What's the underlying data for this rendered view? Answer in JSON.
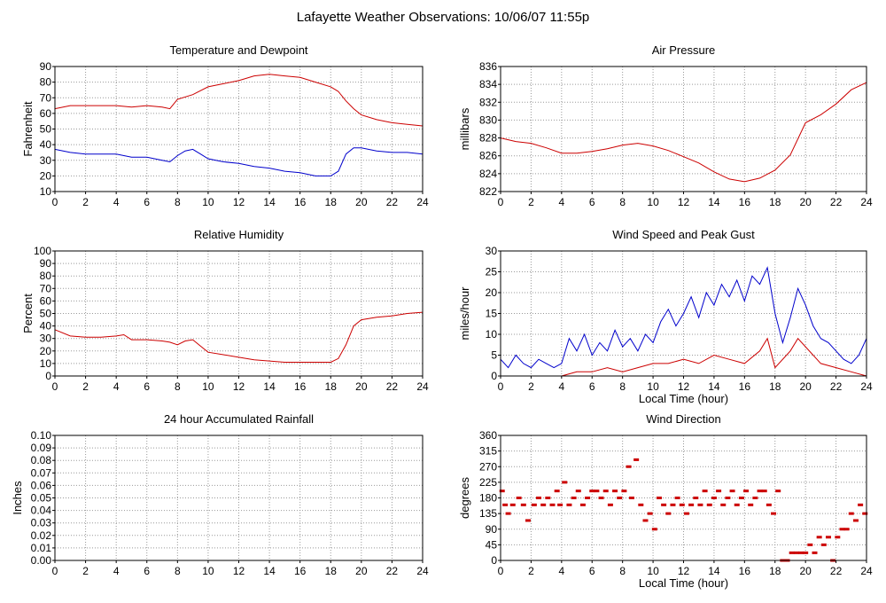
{
  "title": "Lafayette Weather Observations: 10/06/07 11:55p",
  "colors": {
    "temperature": "#cc0000",
    "dewpoint": "#0000cc",
    "grid": "#999999"
  },
  "chart_data": [
    {
      "id": "temp",
      "type": "line",
      "title": "Temperature and Dewpoint",
      "ylabel": "Fahrenheit",
      "xlabel": "",
      "xlim": [
        0,
        24
      ],
      "ylim": [
        10,
        90
      ],
      "xticks": [
        "0",
        "2",
        "4",
        "6",
        "8",
        "10",
        "12",
        "14",
        "16",
        "18",
        "20",
        "22",
        "24"
      ],
      "yticks": [
        "10",
        "20",
        "30",
        "40",
        "50",
        "60",
        "70",
        "80",
        "90"
      ],
      "series": [
        {
          "color": "#cc0000",
          "x": [
            0,
            1,
            2,
            3,
            4,
            5,
            6,
            7,
            7.5,
            8,
            9,
            10,
            11,
            12,
            13,
            14,
            15,
            16,
            17,
            18,
            18.5,
            19,
            19.5,
            20,
            21,
            22,
            23,
            24
          ],
          "y": [
            63,
            65,
            65,
            65,
            65,
            64,
            65,
            64,
            63,
            69,
            72,
            77,
            79,
            81,
            84,
            85,
            84,
            83,
            80,
            77,
            74,
            68,
            63,
            59,
            56,
            54,
            53,
            52
          ]
        },
        {
          "color": "#0000cc",
          "x": [
            0,
            1,
            2,
            3,
            4,
            5,
            6,
            7,
            7.5,
            8,
            8.5,
            9,
            9.5,
            10,
            11,
            12,
            13,
            14,
            15,
            16,
            17,
            18,
            18.5,
            19,
            19.5,
            20,
            21,
            22,
            23,
            24
          ],
          "y": [
            37,
            35,
            34,
            34,
            34,
            32,
            32,
            30,
            29,
            33,
            36,
            37,
            34,
            31,
            29,
            28,
            26,
            25,
            23,
            22,
            20,
            20,
            23,
            34,
            38,
            38,
            36,
            35,
            35,
            34
          ]
        }
      ]
    },
    {
      "id": "pres",
      "type": "line",
      "title": "Air Pressure",
      "ylabel": "millibars",
      "xlabel": "",
      "xlim": [
        0,
        24
      ],
      "ylim": [
        822,
        836
      ],
      "xticks": [
        "0",
        "2",
        "4",
        "6",
        "8",
        "10",
        "12",
        "14",
        "16",
        "18",
        "20",
        "22",
        "24"
      ],
      "yticks": [
        "822",
        "824",
        "826",
        "828",
        "830",
        "832",
        "834",
        "836"
      ],
      "series": [
        {
          "color": "#cc0000",
          "x": [
            0,
            1,
            2,
            3,
            4,
            5,
            6,
            7,
            8,
            9,
            10,
            11,
            12,
            13,
            14,
            15,
            16,
            17,
            18,
            19,
            20,
            21,
            22,
            23,
            24
          ],
          "y": [
            828.0,
            827.6,
            827.4,
            826.9,
            826.3,
            826.3,
            826.5,
            826.8,
            827.2,
            827.4,
            827.1,
            826.6,
            825.9,
            825.2,
            824.2,
            823.4,
            823.1,
            823.5,
            824.4,
            826.1,
            829.7,
            830.6,
            831.8,
            833.4,
            834.2
          ]
        }
      ]
    },
    {
      "id": "rh",
      "type": "line",
      "title": "Relative Humidity",
      "ylabel": "Percent",
      "xlabel": "",
      "xlim": [
        0,
        24
      ],
      "ylim": [
        0,
        100
      ],
      "xticks": [
        "0",
        "2",
        "4",
        "6",
        "8",
        "10",
        "12",
        "14",
        "16",
        "18",
        "20",
        "22",
        "24"
      ],
      "yticks": [
        "0",
        "10",
        "20",
        "30",
        "40",
        "50",
        "60",
        "70",
        "80",
        "90",
        "100"
      ],
      "series": [
        {
          "color": "#cc0000",
          "x": [
            0,
            1,
            2,
            3,
            4,
            4.5,
            5,
            6,
            7,
            7.5,
            8,
            8.5,
            9,
            9.5,
            10,
            11,
            12,
            13,
            14,
            15,
            16,
            17,
            18,
            18.5,
            19,
            19.5,
            20,
            21,
            22,
            23,
            24
          ],
          "y": [
            37,
            32,
            31,
            31,
            32,
            33,
            29,
            29,
            28,
            27,
            25,
            28,
            29,
            24,
            19,
            17,
            15,
            13,
            12,
            11,
            11,
            11,
            11,
            14,
            25,
            40,
            45,
            47,
            48,
            50,
            51
          ]
        }
      ]
    },
    {
      "id": "wind",
      "type": "line",
      "title": "Wind Speed and Peak Gust",
      "ylabel": "miles/hour",
      "xlabel": "Local Time (hour)",
      "xlim": [
        0,
        24
      ],
      "ylim": [
        0,
        30
      ],
      "xticks": [
        "0",
        "2",
        "4",
        "6",
        "8",
        "10",
        "12",
        "14",
        "16",
        "18",
        "20",
        "22",
        "24"
      ],
      "yticks": [
        "0",
        "5",
        "10",
        "15",
        "20",
        "25",
        "30"
      ],
      "series": [
        {
          "color": "#0000cc",
          "x": [
            0,
            0.5,
            1,
            1.5,
            2,
            2.5,
            3,
            3.5,
            4,
            4.5,
            5,
            5.5,
            6,
            6.5,
            7,
            7.5,
            8,
            8.5,
            9,
            9.5,
            10,
            10.5,
            11,
            11.5,
            12,
            12.5,
            13,
            13.5,
            14,
            14.5,
            15,
            15.5,
            16,
            16.5,
            17,
            17.5,
            18,
            18.5,
            19,
            19.5,
            20,
            20.5,
            21,
            21.5,
            22,
            22.5,
            23,
            23.5,
            24
          ],
          "y": [
            4,
            2,
            5,
            3,
            2,
            4,
            3,
            2,
            3,
            9,
            6,
            10,
            5,
            8,
            6,
            11,
            7,
            9,
            6,
            10,
            8,
            13,
            16,
            12,
            15,
            19,
            14,
            20,
            17,
            22,
            19,
            23,
            18,
            24,
            22,
            26,
            15,
            8,
            14,
            21,
            17,
            12,
            9,
            8,
            6,
            4,
            3,
            5,
            9
          ]
        },
        {
          "color": "#cc0000",
          "x": [
            0,
            1,
            2,
            3,
            4,
            5,
            6,
            7,
            8,
            9,
            10,
            11,
            12,
            13,
            14,
            15,
            16,
            17,
            17.5,
            18,
            19,
            19.5,
            20,
            21,
            22,
            23,
            24
          ],
          "y": [
            0,
            0,
            0,
            0,
            0,
            1,
            1,
            2,
            1,
            2,
            3,
            3,
            4,
            3,
            5,
            4,
            3,
            6,
            9,
            2,
            6,
            9,
            7,
            3,
            2,
            1,
            0
          ]
        }
      ]
    },
    {
      "id": "rain",
      "type": "line",
      "title": "24 hour Accumulated Rainfall",
      "ylabel": "Inches",
      "xlabel": "",
      "xlim": [
        0,
        24
      ],
      "ylim": [
        0,
        0.1
      ],
      "xticks": [
        "0",
        "2",
        "4",
        "6",
        "8",
        "10",
        "12",
        "14",
        "16",
        "18",
        "20",
        "22",
        "24"
      ],
      "yticks": [
        "0.00",
        "0.01",
        "0.02",
        "0.03",
        "0.04",
        "0.05",
        "0.06",
        "0.07",
        "0.08",
        "0.09",
        "0.10"
      ],
      "series": [
        {
          "color": "#cc0000",
          "x": [
            0,
            24
          ],
          "y": [
            0,
            0
          ]
        }
      ]
    },
    {
      "id": "dir",
      "type": "scatter",
      "title": "Wind Direction",
      "ylabel": "degrees",
      "xlabel": "Local Time (hour)",
      "xlim": [
        0,
        24
      ],
      "ylim": [
        0,
        360
      ],
      "xticks": [
        "0",
        "2",
        "4",
        "6",
        "8",
        "10",
        "12",
        "14",
        "16",
        "18",
        "20",
        "22",
        "24"
      ],
      "yticks": [
        "0",
        "45",
        "90",
        "135",
        "180",
        "225",
        "270",
        "315",
        "360"
      ],
      "series": [
        {
          "color": "#cc0000",
          "x": [
            0.1,
            0.3,
            0.5,
            0.8,
            1.2,
            1.5,
            1.8,
            2.2,
            2.5,
            2.8,
            3.1,
            3.4,
            3.7,
            3.9,
            4.2,
            4.5,
            4.8,
            5.1,
            5.4,
            5.7,
            6.0,
            6.3,
            6.6,
            6.9,
            7.2,
            7.5,
            7.8,
            8.1,
            8.4,
            8.6,
            8.9,
            9.2,
            9.5,
            9.8,
            10.1,
            10.4,
            10.7,
            11.0,
            11.3,
            11.6,
            11.9,
            12.2,
            12.5,
            12.8,
            13.1,
            13.4,
            13.7,
            14.0,
            14.3,
            14.6,
            14.9,
            15.2,
            15.5,
            15.8,
            16.1,
            16.4,
            16.7,
            17.0,
            17.3,
            17.6,
            17.9,
            18.2,
            18.5,
            18.8,
            19.1,
            19.4,
            19.7,
            20.0,
            20.3,
            20.6,
            20.9,
            21.2,
            21.5,
            21.8,
            22.1,
            22.4,
            22.7,
            23.0,
            23.3,
            23.6,
            23.9
          ],
          "y": [
            200,
            160,
            135,
            160,
            180,
            160,
            115,
            160,
            180,
            160,
            180,
            160,
            200,
            160,
            225,
            160,
            180,
            200,
            160,
            180,
            200,
            200,
            180,
            200,
            160,
            200,
            180,
            200,
            270,
            180,
            290,
            160,
            115,
            135,
            90,
            180,
            160,
            135,
            160,
            180,
            160,
            135,
            160,
            180,
            160,
            200,
            160,
            180,
            200,
            160,
            180,
            200,
            160,
            180,
            200,
            160,
            180,
            200,
            200,
            160,
            135,
            200,
            0,
            0,
            22,
            22,
            22,
            22,
            45,
            22,
            67,
            45,
            67,
            0,
            67,
            90,
            90,
            135,
            115,
            160,
            135
          ]
        }
      ]
    }
  ]
}
